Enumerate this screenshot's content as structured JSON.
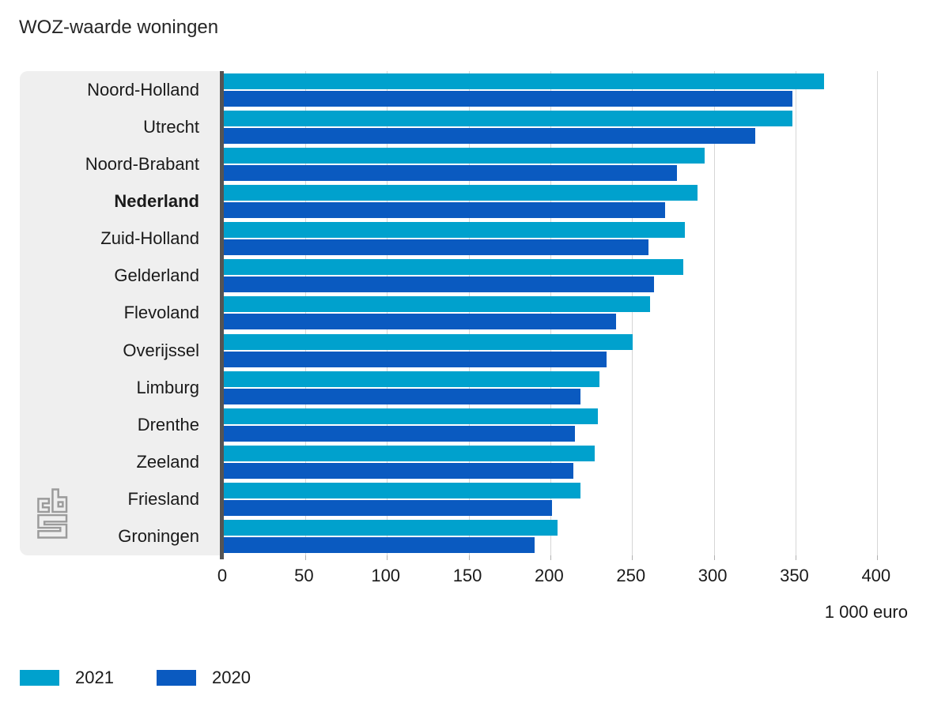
{
  "title": "WOZ-waarde woningen",
  "chart_data": {
    "type": "bar",
    "orientation": "horizontal",
    "title": "WOZ-waarde woningen",
    "xlabel": "1 000 euro",
    "ylabel": "",
    "xlim": [
      0,
      400
    ],
    "xticks": [
      0,
      50,
      100,
      150,
      200,
      250,
      300,
      350,
      400
    ],
    "grid": true,
    "legend_position": "bottom-left",
    "bold_category": "Nederland",
    "categories": [
      "Noord-Holland",
      "Utrecht",
      "Noord-Brabant",
      "Nederland",
      "Zuid-Holland",
      "Gelderland",
      "Flevoland",
      "Overijssel",
      "Limburg",
      "Drenthe",
      "Zeeland",
      "Friesland",
      "Groningen"
    ],
    "series": [
      {
        "name": "2021",
        "color": "#00a1cd",
        "values": [
          367,
          348,
          294,
          290,
          282,
          281,
          261,
          250,
          230,
          229,
          227,
          218,
          204
        ]
      },
      {
        "name": "2020",
        "color": "#0a5ac0",
        "values": [
          348,
          325,
          277,
          270,
          260,
          263,
          240,
          234,
          218,
          215,
          214,
          201,
          190
        ]
      }
    ]
  },
  "logo": {
    "name": "cbs-logo"
  },
  "colors": {
    "panel_background": "#efefef",
    "axis_line": "#545454",
    "gridline": "#d6d6d6",
    "text": "#1a1a1a",
    "series_2021": "#00a1cd",
    "series_2020": "#0a5ac0"
  }
}
